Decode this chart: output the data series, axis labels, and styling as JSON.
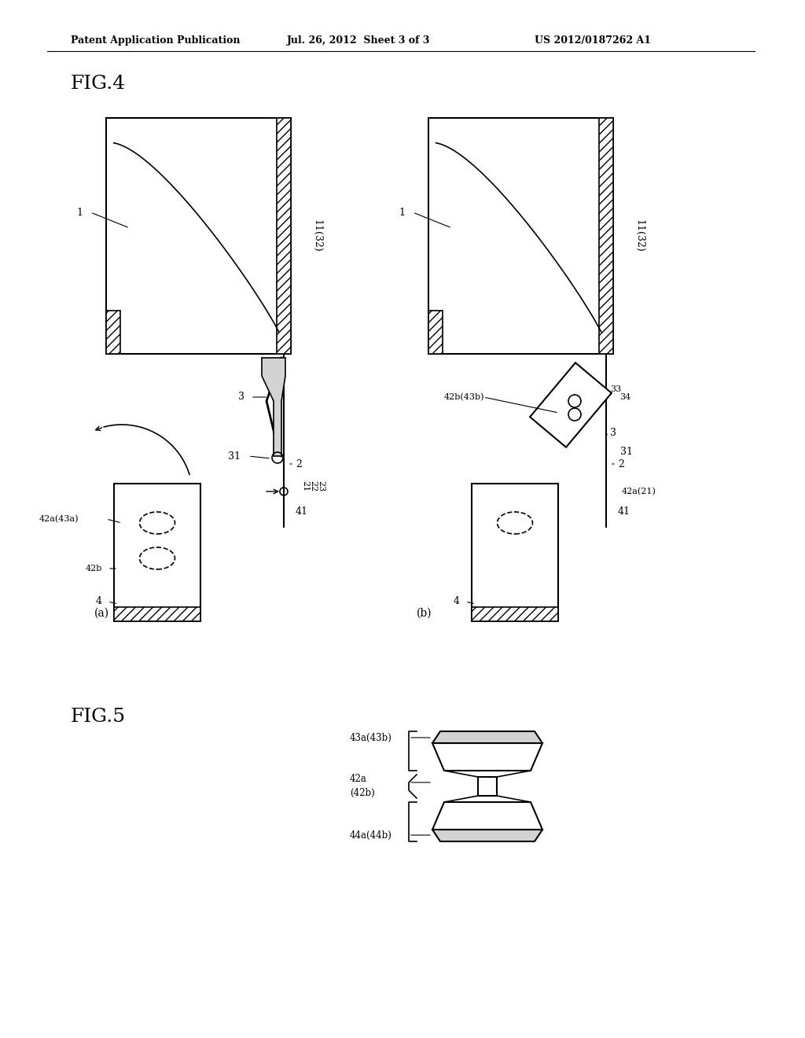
{
  "title_text": "Patent Application Publication",
  "date_text": "Jul. 26, 2012  Sheet 3 of 3",
  "patent_text": "US 2012/0187262 A1",
  "fig4_label": "FIG.4",
  "fig5_label": "FIG.5",
  "bg_color": "#ffffff",
  "line_color": "#000000",
  "hatch_color": "#555555"
}
